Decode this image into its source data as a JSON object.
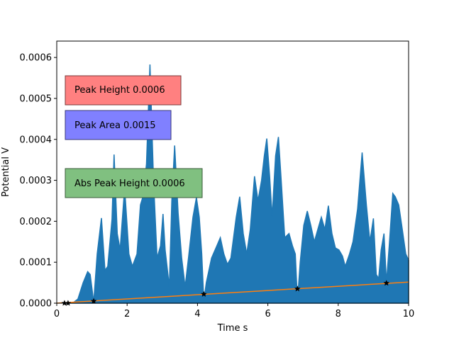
{
  "chart_data": {
    "type": "area",
    "xlabel": "Time s",
    "ylabel": "Potential V",
    "xlim": [
      0,
      10
    ],
    "ylim": [
      0,
      0.00064
    ],
    "x_ticks": [
      0,
      2,
      4,
      6,
      8,
      10
    ],
    "x_tick_labels": [
      "0",
      "2",
      "4",
      "6",
      "8",
      "10"
    ],
    "y_ticks": [
      0,
      0.0001,
      0.0002,
      0.0003,
      0.0004,
      0.0005,
      0.0006
    ],
    "y_tick_labels": [
      "0.0000",
      "0.0001",
      "0.0002",
      "0.0003",
      "0.0004",
      "0.0005",
      "0.0006"
    ],
    "grid": false,
    "series": [
      {
        "role": "signal",
        "color": "#1f77b4",
        "filled": true,
        "points": [
          [
            0.2,
            0
          ],
          [
            0.45,
            0
          ],
          [
            0.6,
            1e-05
          ],
          [
            0.75,
            5e-05
          ],
          [
            0.88,
            7.7e-05
          ],
          [
            0.95,
            7e-05
          ],
          [
            1.05,
            2e-06
          ],
          [
            1.15,
            0.00012
          ],
          [
            1.27,
            0.000208
          ],
          [
            1.37,
            8e-05
          ],
          [
            1.45,
            9e-05
          ],
          [
            1.57,
            0.000205
          ],
          [
            1.63,
            0.000363
          ],
          [
            1.72,
            0.00017
          ],
          [
            1.8,
            0.00013
          ],
          [
            1.93,
            0.000282
          ],
          [
            2.05,
            0.00012
          ],
          [
            2.15,
            9e-05
          ],
          [
            2.28,
            0.00012
          ],
          [
            2.38,
            0.00024
          ],
          [
            2.45,
            0.00026
          ],
          [
            2.55,
            0.00034
          ],
          [
            2.65,
            0.000583
          ],
          [
            2.75,
            0.0003
          ],
          [
            2.85,
            0.00011
          ],
          [
            2.95,
            0.00014
          ],
          [
            3.02,
            0.000218
          ],
          [
            3.08,
            0.00013
          ],
          [
            3.2,
            4e-05
          ],
          [
            3.27,
            0.00025
          ],
          [
            3.35,
            0.000385
          ],
          [
            3.45,
            0.00022
          ],
          [
            3.55,
            0.00011
          ],
          [
            3.65,
            4e-05
          ],
          [
            3.75,
            0.000115
          ],
          [
            3.87,
            0.00021
          ],
          [
            3.97,
            0.000258
          ],
          [
            4.05,
            0.00021
          ],
          [
            4.12,
            0.00012
          ],
          [
            4.18,
            5e-06
          ],
          [
            4.25,
            5e-05
          ],
          [
            4.4,
            0.00011
          ],
          [
            4.55,
            0.00014
          ],
          [
            4.65,
            0.00016
          ],
          [
            4.75,
            0.00012
          ],
          [
            4.85,
            9.5e-05
          ],
          [
            4.95,
            0.00011
          ],
          [
            5.1,
            0.00021
          ],
          [
            5.2,
            0.00026
          ],
          [
            5.3,
            0.00017
          ],
          [
            5.4,
            0.00012
          ],
          [
            5.5,
            0.00018
          ],
          [
            5.62,
            0.00031
          ],
          [
            5.72,
            0.00025
          ],
          [
            5.82,
            0.0003
          ],
          [
            5.9,
            0.00036
          ],
          [
            5.97,
            0.000402
          ],
          [
            6.05,
            0.00031
          ],
          [
            6.12,
            0.00021
          ],
          [
            6.22,
            0.00036
          ],
          [
            6.3,
            0.000406
          ],
          [
            6.38,
            0.0003
          ],
          [
            6.48,
            0.00016
          ],
          [
            6.6,
            0.00017
          ],
          [
            6.7,
            0.00014
          ],
          [
            6.78,
            0.00012
          ],
          [
            6.84,
            5e-06
          ],
          [
            6.92,
            0.0001
          ],
          [
            7.02,
            0.00019
          ],
          [
            7.12,
            0.000225
          ],
          [
            7.22,
            0.00019
          ],
          [
            7.32,
            0.00015
          ],
          [
            7.42,
            0.00018
          ],
          [
            7.52,
            0.00021
          ],
          [
            7.62,
            0.00018
          ],
          [
            7.72,
            0.000238
          ],
          [
            7.82,
            0.00017
          ],
          [
            7.92,
            0.000135
          ],
          [
            8.02,
            0.00013
          ],
          [
            8.12,
            0.000115
          ],
          [
            8.2,
            9e-05
          ],
          [
            8.32,
            0.00012
          ],
          [
            8.42,
            0.00015
          ],
          [
            8.55,
            0.00023
          ],
          [
            8.68,
            0.000368
          ],
          [
            8.8,
            0.00024
          ],
          [
            8.9,
            0.00015
          ],
          [
            9.0,
            0.000207
          ],
          [
            9.08,
            7e-05
          ],
          [
            9.15,
            6e-05
          ],
          [
            9.22,
            0.00013
          ],
          [
            9.3,
            0.00017
          ],
          [
            9.37,
            5e-05
          ],
          [
            9.45,
            0.00014
          ],
          [
            9.55,
            0.000268
          ],
          [
            9.62,
            0.00026
          ],
          [
            9.72,
            0.00024
          ],
          [
            9.82,
            0.00018
          ],
          [
            9.92,
            0.00012
          ],
          [
            10.0,
            0.000105
          ]
        ]
      },
      {
        "role": "baseline",
        "color": "#ff7f0e",
        "filled": false,
        "points": [
          [
            0,
            0
          ],
          [
            10,
            5.15e-05
          ]
        ]
      }
    ],
    "markers": {
      "color": "#000000",
      "points": [
        [
          0.22,
          0
        ],
        [
          0.32,
          0
        ],
        [
          1.05,
          5e-06
        ],
        [
          4.18,
          2.2e-05
        ],
        [
          6.84,
          3.5e-05
        ],
        [
          9.37,
          4.9e-05
        ]
      ]
    },
    "annotations": [
      {
        "key": "peak_height",
        "text": "Peak Height 0.0006",
        "color": "#ff8080"
      },
      {
        "key": "peak_area",
        "text": "Peak Area 0.0015",
        "color": "#8080ff"
      },
      {
        "key": "abs_peak_height",
        "text": "Abs Peak Height 0.0006",
        "color": "#80c080"
      }
    ]
  }
}
